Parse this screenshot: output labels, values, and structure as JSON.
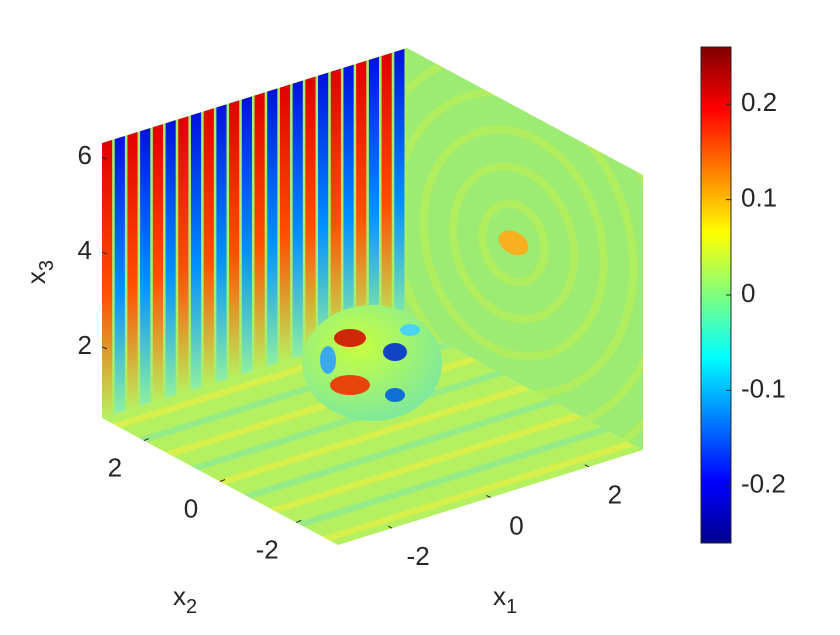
{
  "chart_data": {
    "type": "slice3d",
    "xlabel": "x",
    "xlabel_subscript": "1",
    "ylabel": "x",
    "ylabel_subscript": "2",
    "zlabel": "x",
    "zlabel_subscript": "3",
    "xlim": [
      -3.1,
      3.1
    ],
    "xticks": [
      -2,
      0,
      2
    ],
    "ylim": [
      -3.1,
      3.1
    ],
    "yticks": [
      -2,
      0,
      2
    ],
    "zlim": [
      0.5,
      6.3
    ],
    "zticks": [
      2,
      4,
      6
    ],
    "colormap": "jet",
    "clim": [
      -0.26,
      0.26
    ],
    "cticks": [
      -0.2,
      -0.1,
      0,
      0.1,
      0.2
    ]
  }
}
